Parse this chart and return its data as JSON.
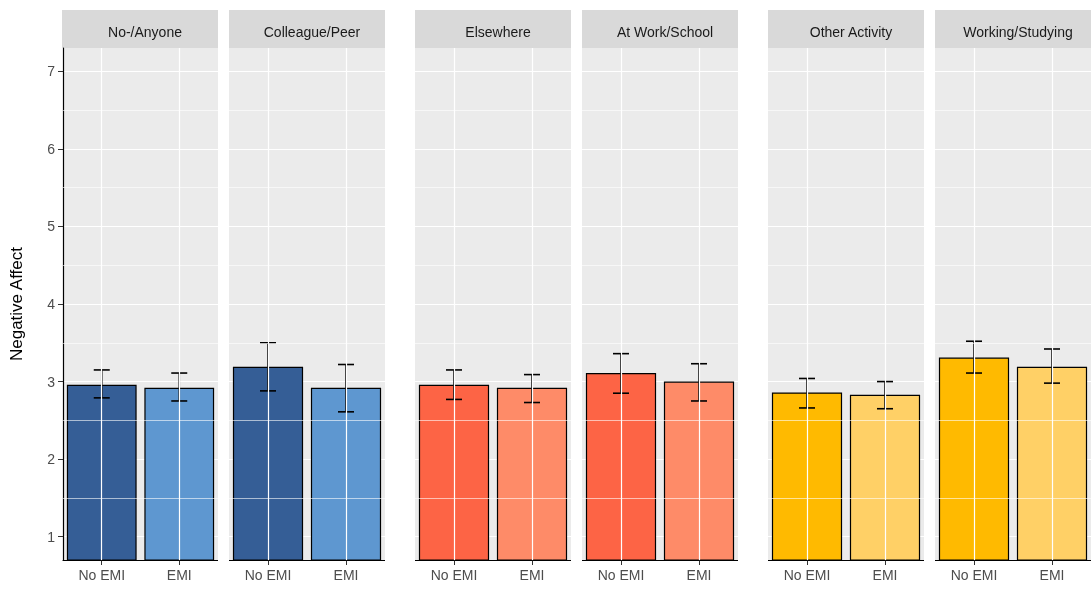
{
  "chart_data": [
    {
      "type": "bar",
      "title": "No-/Anyone",
      "ylabel": "Negative Affect",
      "categories": [
        "No EMI",
        "EMI"
      ],
      "values": [
        2.96,
        2.92
      ],
      "colors": [
        "#355e96",
        "#5e97d0"
      ],
      "errors": [
        [
          2.79,
          3.15
        ],
        [
          2.75,
          3.11
        ]
      ],
      "ylim": [
        0.7,
        7.3
      ],
      "yticks": [
        1,
        2,
        3,
        4,
        5,
        6,
        7
      ],
      "grid": true
    },
    {
      "type": "bar",
      "title": "Colleague/Peer",
      "categories": [
        "No EMI",
        "EMI"
      ],
      "values": [
        3.19,
        2.92
      ],
      "colors": [
        "#355e96",
        "#5e97d0"
      ],
      "errors": [
        [
          2.88,
          3.5
        ],
        [
          2.61,
          3.22
        ]
      ],
      "ylim": [
        0.7,
        7.3
      ],
      "yticks": [
        1,
        2,
        3,
        4,
        5,
        6,
        7
      ],
      "grid": true,
      "tick_labels": "x"
    },
    {
      "type": "bar",
      "title": "Elsewhere",
      "categories": [
        "No EMI",
        "EMI"
      ],
      "values": [
        2.96,
        2.92
      ],
      "colors": [
        "#fd6445",
        "#fe8b68"
      ],
      "errors": [
        [
          2.77,
          3.15
        ],
        [
          2.73,
          3.09
        ]
      ],
      "ylim": [
        0.7,
        7.3
      ],
      "yticks": [
        1,
        2,
        3,
        4,
        5,
        6,
        7
      ],
      "grid": true,
      "tick_labels": "x"
    },
    {
      "type": "bar",
      "title": "At Work/School",
      "categories": [
        "No EMI",
        "EMI"
      ],
      "values": [
        3.11,
        3.0
      ],
      "colors": [
        "#fd6445",
        "#fe8b68"
      ],
      "errors": [
        [
          2.85,
          3.36
        ],
        [
          2.75,
          3.23
        ]
      ],
      "ylim": [
        0.7,
        7.3
      ],
      "yticks": [
        1,
        2,
        3,
        4,
        5,
        6,
        7
      ],
      "grid": true,
      "tick_labels": "x"
    },
    {
      "type": "bar",
      "title": "Other Activity",
      "categories": [
        "No EMI",
        "EMI"
      ],
      "values": [
        2.86,
        2.83
      ],
      "colors": [
        "#ffba00",
        "#ffd066"
      ],
      "errors": [
        [
          2.66,
          3.04
        ],
        [
          2.65,
          3.0
        ]
      ],
      "ylim": [
        0.7,
        7.3
      ],
      "yticks": [
        1,
        2,
        3,
        4,
        5,
        6,
        7
      ],
      "grid": true,
      "tick_labels": "x"
    },
    {
      "type": "bar",
      "title": "Working/Studying",
      "categories": [
        "No EMI",
        "EMI"
      ],
      "values": [
        3.31,
        3.19
      ],
      "colors": [
        "#ffba00",
        "#ffd066"
      ],
      "errors": [
        [
          3.11,
          3.52
        ],
        [
          2.98,
          3.42
        ]
      ],
      "ylim": [
        0.7,
        7.3
      ],
      "yticks": [
        1,
        2,
        3,
        4,
        5,
        6,
        7
      ],
      "grid": true,
      "tick_labels": "x"
    }
  ]
}
